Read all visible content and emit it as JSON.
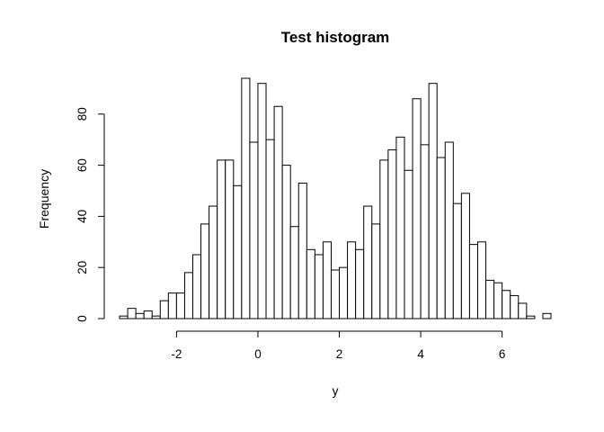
{
  "chart_data": {
    "type": "bar",
    "title": "Test histogram",
    "xlabel": "y",
    "ylabel": "Frequency",
    "xlim": [
      -3.4,
      7.2
    ],
    "ylim": [
      0,
      94
    ],
    "bin_width": 0.2,
    "bin_start": -3.4,
    "x_ticks": [
      -2,
      0,
      2,
      4,
      6
    ],
    "y_ticks": [
      0,
      20,
      40,
      60,
      80
    ],
    "values": [
      1,
      4,
      2,
      3,
      1,
      7,
      10,
      10,
      18,
      25,
      37,
      44,
      62,
      62,
      52,
      94,
      69,
      92,
      70,
      83,
      60,
      36,
      53,
      27,
      25,
      30,
      19,
      20,
      30,
      27,
      44,
      37,
      62,
      66,
      71,
      58,
      86,
      68,
      92,
      63,
      69,
      45,
      49,
      29,
      30,
      15,
      14,
      11,
      9,
      6,
      1,
      0,
      2
    ],
    "grid": false,
    "bar_fill": "#ffffff",
    "bar_stroke": "#000000"
  }
}
